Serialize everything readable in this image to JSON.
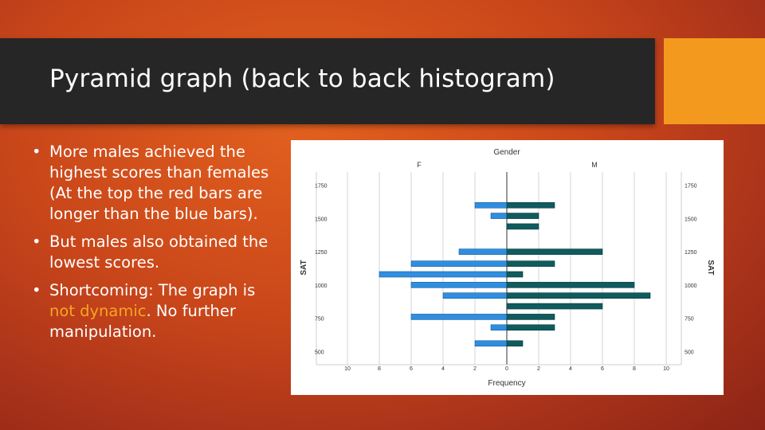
{
  "slide": {
    "title": "Pyramid graph (back to back histogram)",
    "bullets": [
      {
        "text": "More males achieved the highest scores than females (At the top the red bars are longer than the blue bars)."
      },
      {
        "text": "But males also obtained the lowest scores."
      },
      {
        "text_before": "Shortcoming: The graph is ",
        "highlight": "not dynamic",
        "text_after": ". No further manipulation."
      }
    ]
  },
  "colors": {
    "title_bar": "#262626",
    "accent": "#f39a1e",
    "highlight": "#f5a623",
    "female_bar": "#2f8ee0",
    "male_bar": "#0f5b5e"
  },
  "chart_data": {
    "type": "bar",
    "orientation": "horizontal back-to-back",
    "title": "Gender",
    "panels": [
      "F",
      "M"
    ],
    "xlabel": "Frequency",
    "ylabel_left": "SAT",
    "ylabel_right": "SAT",
    "x_ticks_left": [
      "10",
      "8",
      "6",
      "4",
      "2",
      "0"
    ],
    "x_ticks_right": [
      "2",
      "4",
      "6",
      "8",
      "10"
    ],
    "y_ticks": [
      "1750",
      "1500",
      "1250",
      "1000",
      "750",
      "500"
    ],
    "y_tick_values": [
      1750,
      1500,
      1250,
      1000,
      750,
      500
    ],
    "xlim": [
      0,
      10
    ],
    "ylim": [
      400,
      1850
    ],
    "grid": true,
    "bins": [
      1600,
      1520,
      1440,
      1250,
      1160,
      1080,
      1000,
      920,
      840,
      760,
      680,
      560
    ],
    "series": [
      {
        "name": "F",
        "values": [
          2,
          1,
          0,
          3,
          6,
          8,
          6,
          4,
          0,
          6,
          1,
          2
        ]
      },
      {
        "name": "M",
        "values": [
          3,
          2,
          2,
          6,
          3,
          1,
          8,
          9,
          6,
          3,
          3,
          1
        ]
      }
    ]
  }
}
